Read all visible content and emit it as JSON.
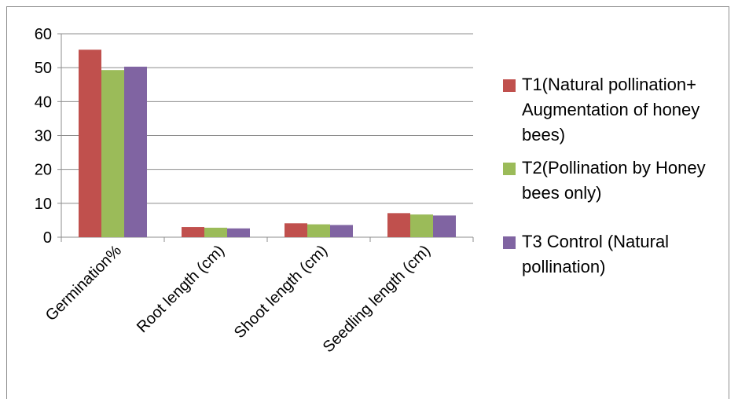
{
  "chart_data": {
    "type": "bar",
    "categories": [
      "Germination%",
      "Root length (cm)",
      "Shoot length (cm)",
      "Seedling length (cm)"
    ],
    "series": [
      {
        "name": "T1(Natural pollination+ Augmentation of honey bees)",
        "color": "#c0504d",
        "values": [
          55.3,
          3.0,
          4.1,
          7.1
        ]
      },
      {
        "name": "T2(Pollination by Honey bees only)",
        "color": "#9bbb59",
        "values": [
          49.3,
          2.8,
          3.8,
          6.7
        ]
      },
      {
        "name": "T3 Control (Natural pollination)",
        "color": "#8064a2",
        "values": [
          50.3,
          2.6,
          3.6,
          6.4
        ]
      }
    ],
    "y_ticks": [
      "0",
      "10",
      "20",
      "30",
      "40",
      "50",
      "60"
    ],
    "ylim": [
      0,
      60
    ],
    "grid": true,
    "legend_position": "right"
  }
}
